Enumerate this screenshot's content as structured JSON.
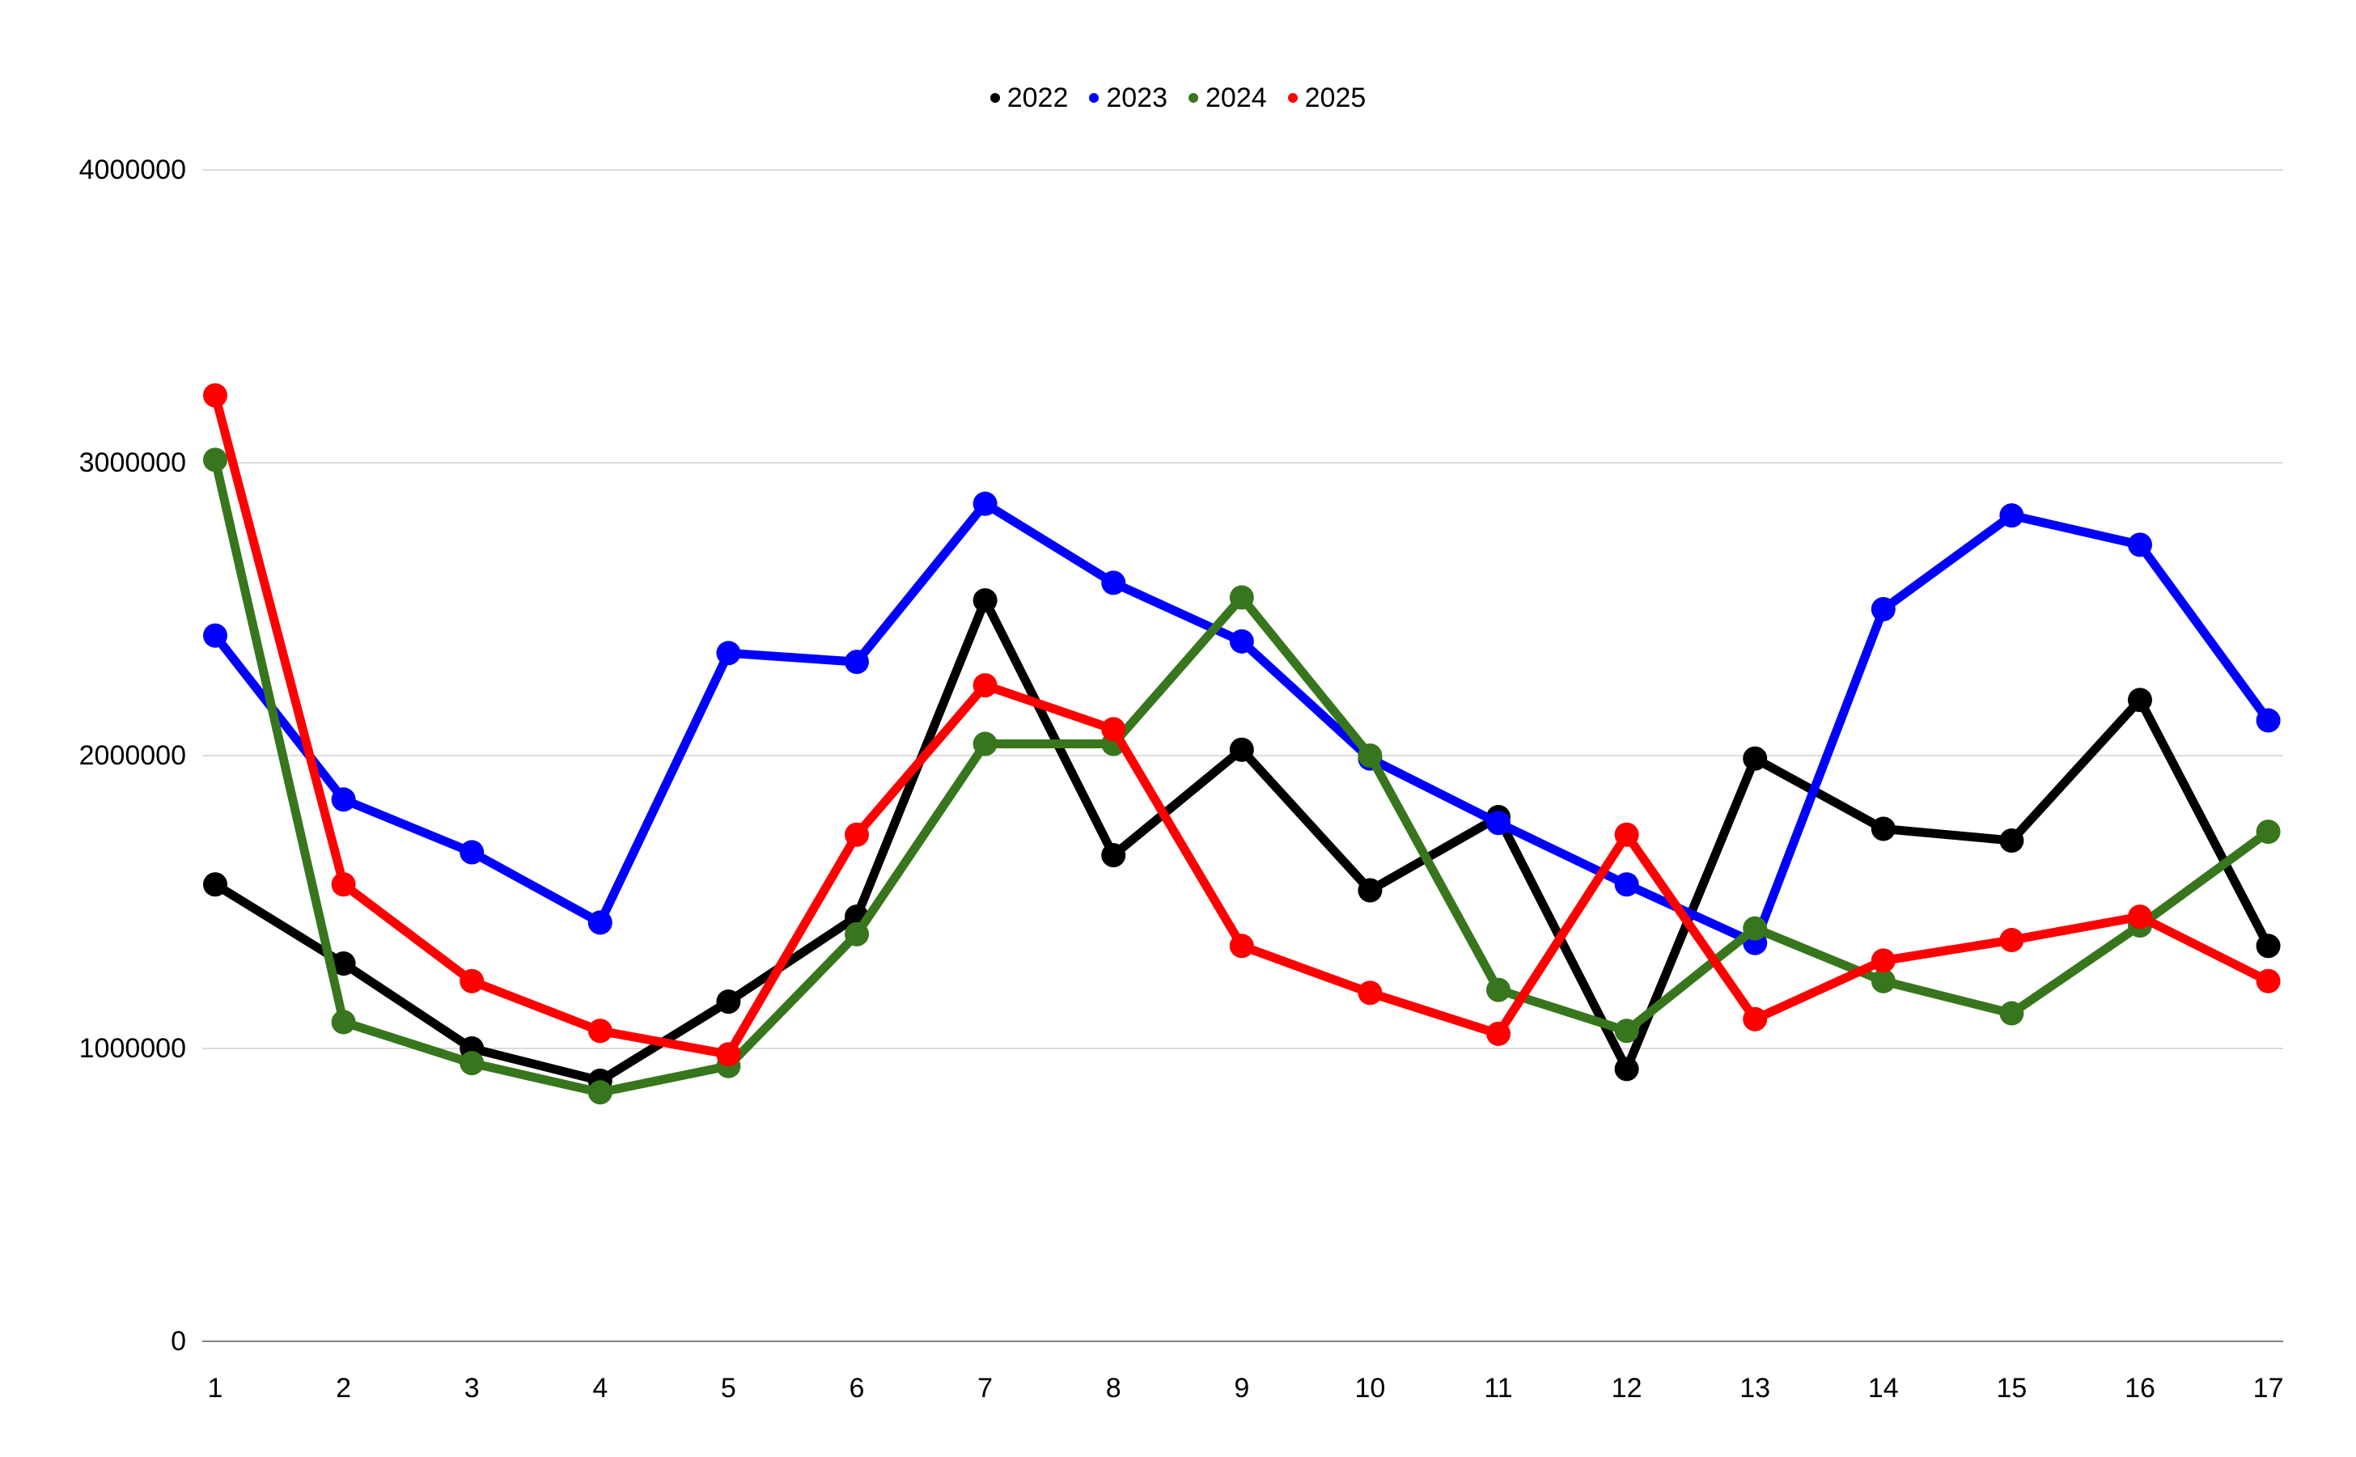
{
  "chart_data": {
    "type": "line",
    "title": "",
    "xlabel": "",
    "ylabel": "",
    "x": [
      1,
      2,
      3,
      4,
      5,
      6,
      7,
      8,
      9,
      10,
      11,
      12,
      13,
      14,
      15,
      16,
      17
    ],
    "x_tick_labels": [
      "1",
      "2",
      "3",
      "4",
      "5",
      "6",
      "7",
      "8",
      "9",
      "10",
      "11",
      "12",
      "13",
      "14",
      "15",
      "16",
      "17"
    ],
    "series": [
      {
        "name": "2022",
        "color": "#000000",
        "values": [
          1560000,
          1290000,
          1000000,
          890000,
          1160000,
          1450000,
          2530000,
          1660000,
          2020000,
          1540000,
          1790000,
          930000,
          1990000,
          1750000,
          1710000,
          2190000,
          1350000
        ]
      },
      {
        "name": "2023",
        "color": "#0000ff",
        "values": [
          2410000,
          1850000,
          1670000,
          1430000,
          2350000,
          2320000,
          2860000,
          2590000,
          2390000,
          1990000,
          1770000,
          1560000,
          1360000,
          2500000,
          2820000,
          2720000,
          2120000
        ]
      },
      {
        "name": "2024",
        "color": "#38761d",
        "values": [
          3010000,
          1090000,
          950000,
          850000,
          940000,
          1390000,
          2040000,
          2040000,
          2540000,
          2000000,
          1200000,
          1060000,
          1410000,
          1230000,
          1120000,
          1420000,
          1740000
        ]
      },
      {
        "name": "2025",
        "color": "#ff0000",
        "values": [
          3230000,
          1560000,
          1230000,
          1060000,
          980000,
          1730000,
          2240000,
          2090000,
          1350000,
          1190000,
          1050000,
          1730000,
          1100000,
          1300000,
          1370000,
          1450000,
          1230000
        ]
      }
    ],
    "ylim": [
      0,
      4000000
    ],
    "y_ticks": [
      0,
      1000000,
      2000000,
      3000000,
      4000000
    ],
    "y_tick_labels": [
      "0",
      "1000000",
      "2000000",
      "3000000",
      "4000000"
    ],
    "grid": true,
    "legend_position": "top-center",
    "marker": "circle"
  },
  "style_colors": {
    "background": "#ffffff",
    "gridline": "#dcdcdc",
    "baseline": "#808080",
    "tick_text": "#000000"
  }
}
